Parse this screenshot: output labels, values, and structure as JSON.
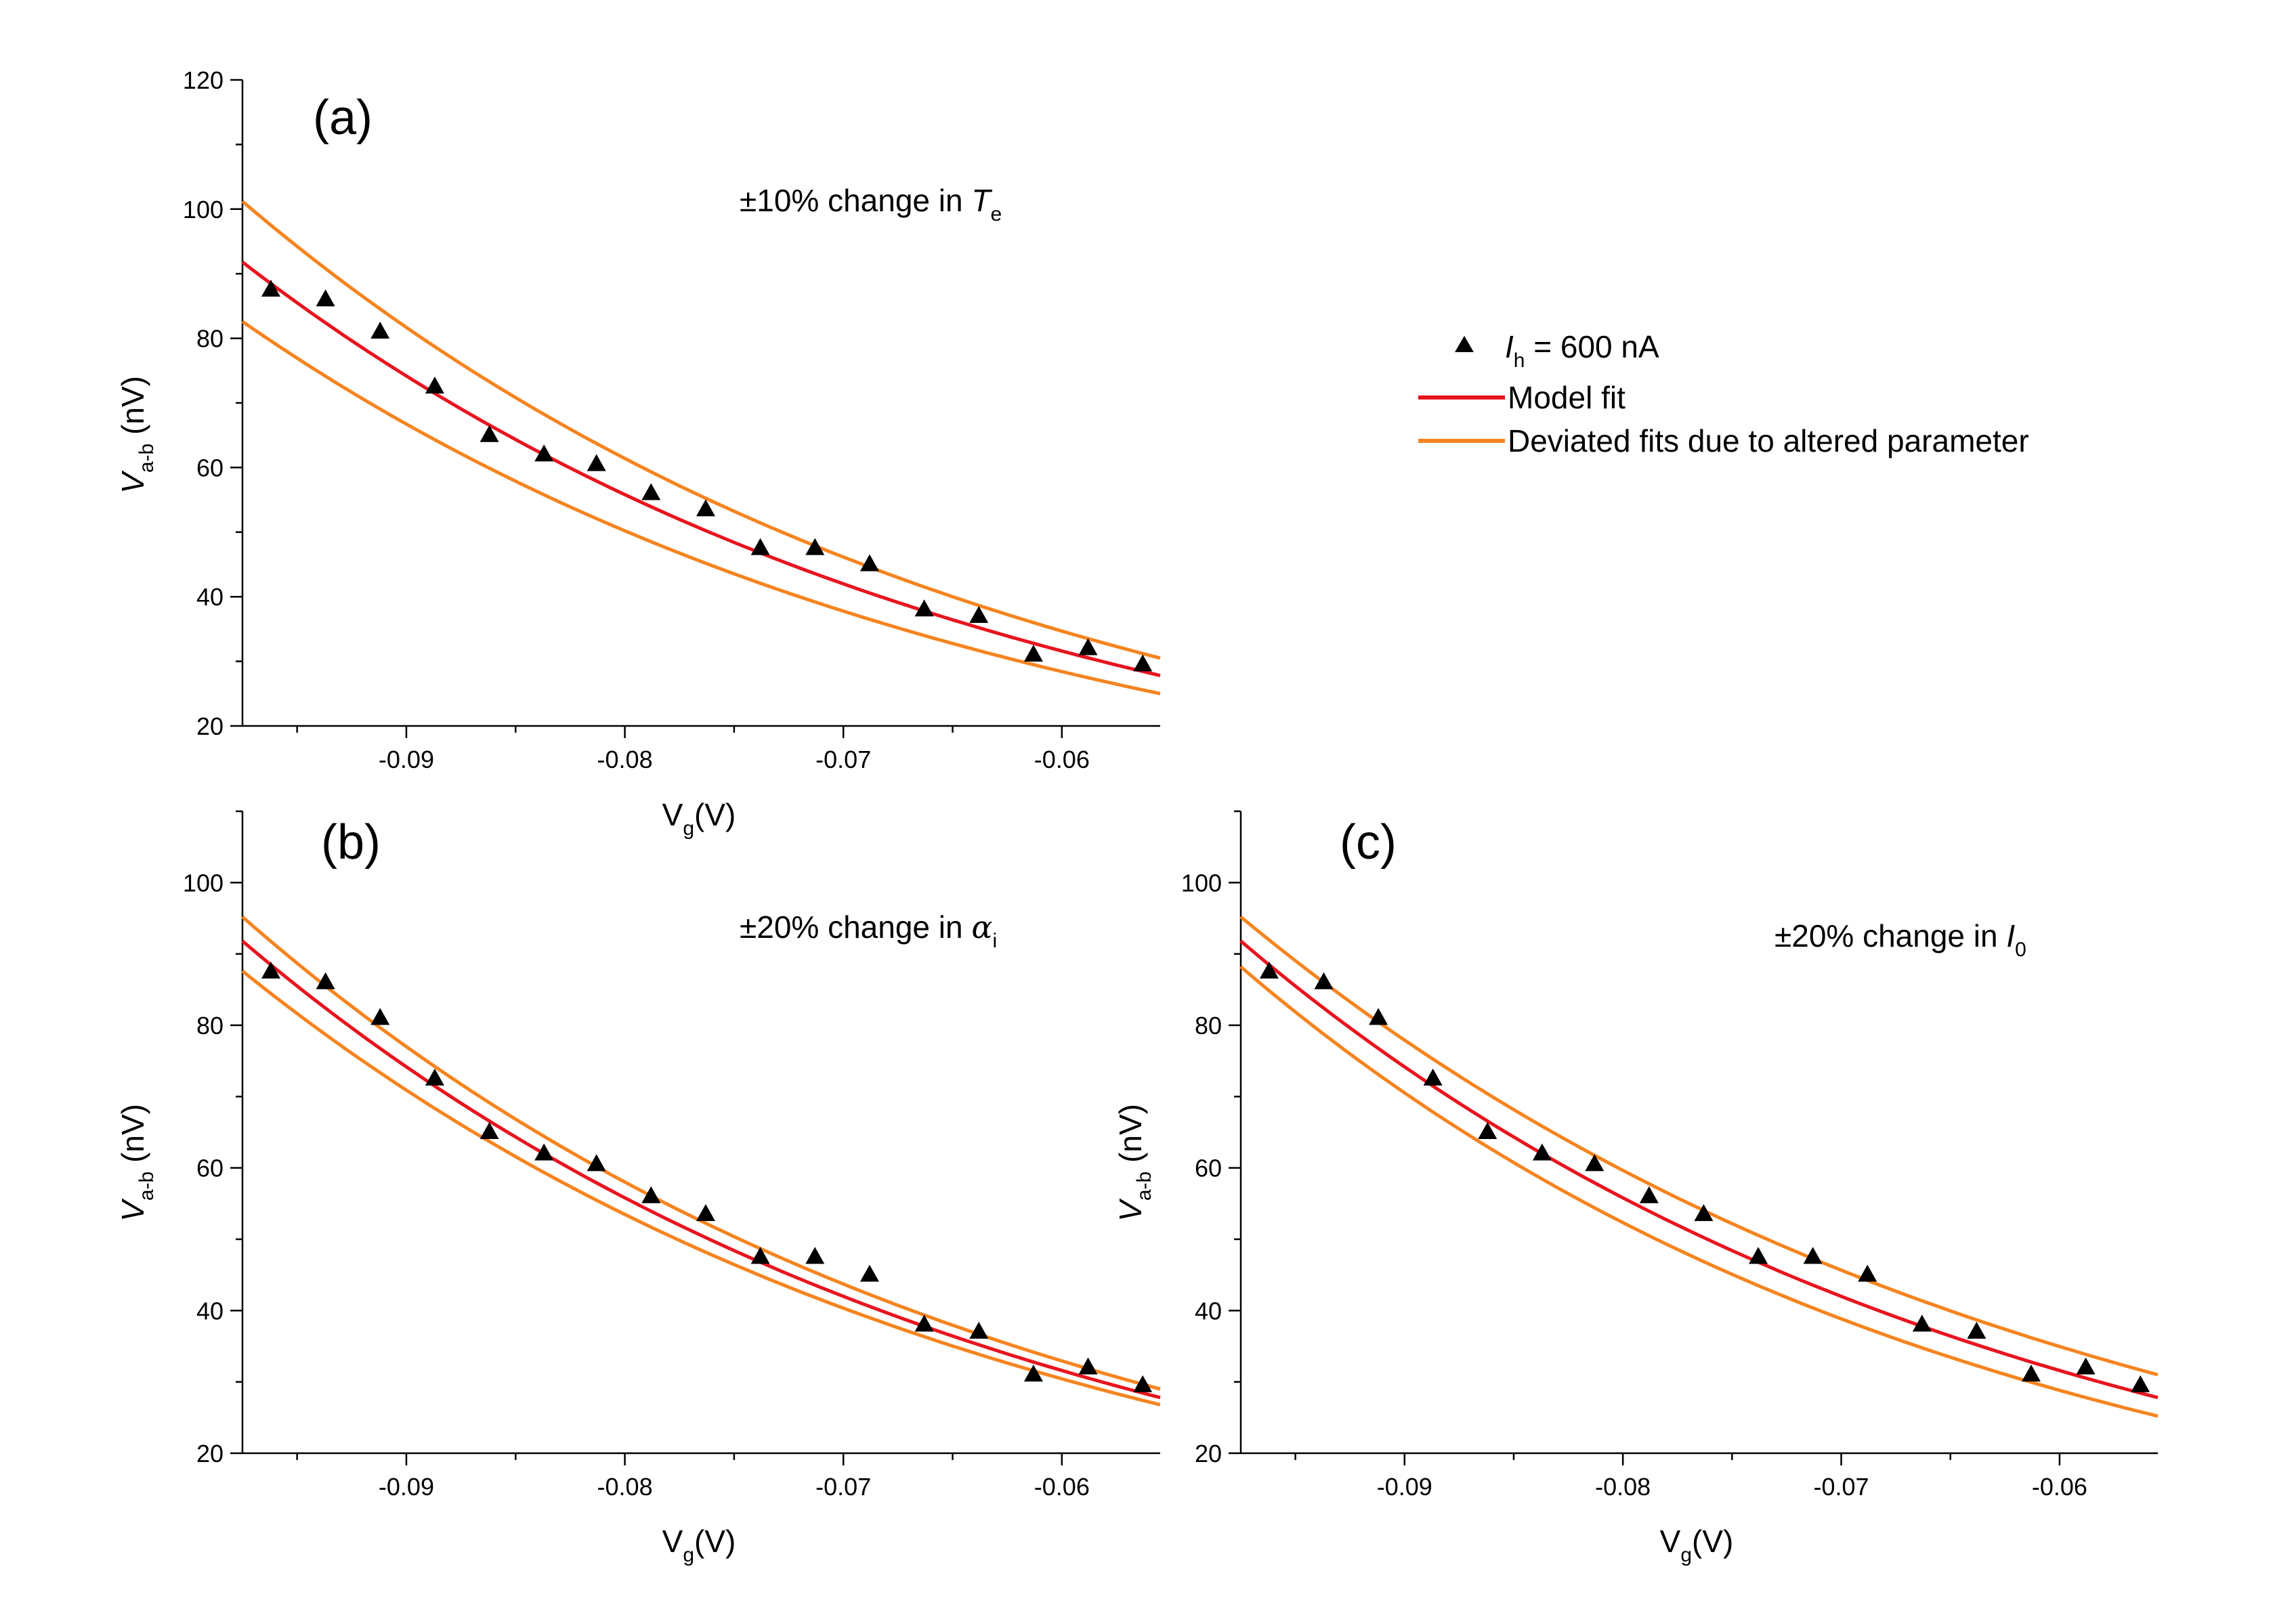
{
  "chart_data": [
    {
      "id": "a",
      "type": "line",
      "panel_label": "(a)",
      "annotation": {
        "prefix": "±10% change in ",
        "symbol": "T",
        "subscript": "e"
      },
      "xlabel": {
        "main": "V",
        "sub": "g",
        "suffix": "(V)"
      },
      "ylabel": {
        "main": "V",
        "sub": "a-b",
        "suffix": " (nV)"
      },
      "xlim": [
        -0.0975,
        -0.0555
      ],
      "ylim": [
        20,
        120
      ],
      "xticks": [
        -0.09,
        -0.08,
        -0.07,
        -0.06
      ],
      "xtick_labels": [
        "-0.09",
        "-0.08",
        "-0.07",
        "-0.06"
      ],
      "yticks": [
        20,
        40,
        60,
        80,
        100,
        120
      ],
      "ytick_labels": [
        "20",
        "40",
        "60",
        "80",
        "100",
        "120"
      ],
      "data_points": {
        "x": [
          -0.0962,
          -0.0937,
          -0.0912,
          -0.0887,
          -0.0862,
          -0.0837,
          -0.0813,
          -0.0788,
          -0.0763,
          -0.0738,
          -0.0713,
          -0.0688,
          -0.0663,
          -0.0638,
          -0.0613,
          -0.0588,
          -0.0563
        ],
        "y": [
          87.5,
          86,
          81,
          72.5,
          65,
          62,
          60.5,
          56,
          53.5,
          47.5,
          47.5,
          45,
          38,
          37,
          31,
          32,
          29.5
        ]
      },
      "fit": {
        "start": 91.8,
        "end": 27.8
      },
      "deviated_upper": {
        "start": 101.2,
        "end": 30.5
      },
      "deviated_lower": {
        "start": 82.6,
        "end": 25
      }
    },
    {
      "id": "b",
      "type": "line",
      "panel_label": "(b)",
      "annotation": {
        "prefix": "±20% change in ",
        "symbol": "α",
        "subscript": "i"
      },
      "xlabel": {
        "main": "V",
        "sub": "g",
        "suffix": "(V)"
      },
      "ylabel": {
        "main": "V",
        "sub": "a-b",
        "suffix": " (nV)"
      },
      "xlim": [
        -0.0975,
        -0.0555
      ],
      "ylim": [
        20,
        110
      ],
      "xticks": [
        -0.09,
        -0.08,
        -0.07,
        -0.06
      ],
      "xtick_labels": [
        "-0.09",
        "-0.08",
        "-0.07",
        "-0.06"
      ],
      "yticks": [
        20,
        40,
        60,
        80,
        100
      ],
      "ytick_labels": [
        "20",
        "40",
        "60",
        "80",
        "100"
      ],
      "data_points": {
        "x": [
          -0.0962,
          -0.0937,
          -0.0912,
          -0.0887,
          -0.0862,
          -0.0837,
          -0.0813,
          -0.0788,
          -0.0763,
          -0.0738,
          -0.0713,
          -0.0688,
          -0.0663,
          -0.0638,
          -0.0613,
          -0.0588,
          -0.0563
        ],
        "y": [
          87.5,
          86,
          81,
          72.5,
          65,
          62,
          60.5,
          56,
          53.5,
          47.5,
          47.5,
          45,
          38,
          37,
          31,
          32,
          29.5
        ]
      },
      "fit": {
        "start": 91.8,
        "end": 27.8
      },
      "deviated_upper": {
        "start": 95.2,
        "end": 29
      },
      "deviated_lower": {
        "start": 87.6,
        "end": 26.8
      }
    },
    {
      "id": "c",
      "type": "line",
      "panel_label": "(c)",
      "annotation": {
        "prefix": "±20% change in ",
        "symbol": "I",
        "subscript": "0"
      },
      "xlabel": {
        "main": "V",
        "sub": "g",
        "suffix": "(V)"
      },
      "ylabel": {
        "main": "V",
        "sub": "a-b",
        "suffix": " (nV)"
      },
      "xlim": [
        -0.0975,
        -0.0555
      ],
      "ylim": [
        20,
        110
      ],
      "xticks": [
        -0.09,
        -0.08,
        -0.07,
        -0.06
      ],
      "xtick_labels": [
        "-0.09",
        "-0.08",
        "-0.07",
        "-0.06"
      ],
      "yticks": [
        20,
        40,
        60,
        80,
        100
      ],
      "ytick_labels": [
        "20",
        "40",
        "60",
        "80",
        "100"
      ],
      "data_points": {
        "x": [
          -0.0962,
          -0.0937,
          -0.0912,
          -0.0887,
          -0.0862,
          -0.0837,
          -0.0813,
          -0.0788,
          -0.0763,
          -0.0738,
          -0.0713,
          -0.0688,
          -0.0663,
          -0.0638,
          -0.0613,
          -0.0588,
          -0.0563
        ],
        "y": [
          87.5,
          86,
          81,
          72.5,
          65,
          62,
          60.5,
          56,
          53.5,
          47.5,
          47.5,
          45,
          38,
          37,
          31,
          32,
          29.5
        ]
      },
      "fit": {
        "start": 91.8,
        "end": 27.8
      },
      "deviated_upper": {
        "start": 95.2,
        "end": 31
      },
      "deviated_lower": {
        "start": 88.2,
        "end": 25.2
      }
    }
  ],
  "legend": {
    "entries": [
      {
        "kind": "marker",
        "symbol": "I",
        "subscript": "h",
        "text": " = 600 nA"
      },
      {
        "kind": "line",
        "text": "Model fit"
      },
      {
        "kind": "line",
        "text": "Deviated fits due to altered parameter"
      }
    ]
  },
  "colors": {
    "fit": "#e8141e",
    "deviated": "#f5841f",
    "marker": "#000000",
    "axis": "#000000"
  }
}
